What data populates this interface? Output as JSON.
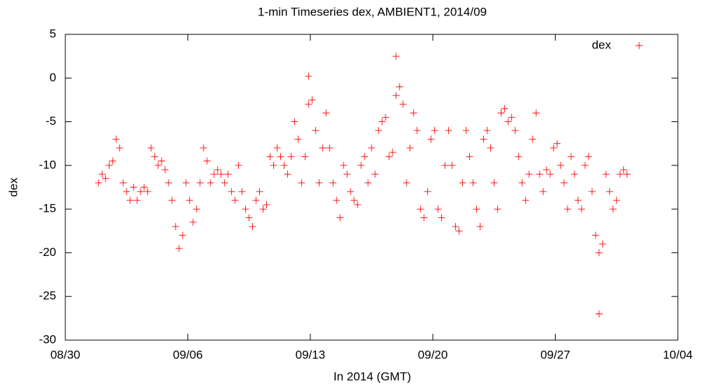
{
  "chart_data": {
    "type": "scatter",
    "title": "1-min Timeseries dex, AMBIENT1, 2014/09",
    "x_label": "In 2014 (GMT)",
    "y_label": "dex",
    "xlim": [
      -1,
      34
    ],
    "xticks": [
      {
        "value": -1,
        "label": "08/30"
      },
      {
        "value": 6,
        "label": "09/06"
      },
      {
        "value": 13,
        "label": "09/13"
      },
      {
        "value": 20,
        "label": "09/20"
      },
      {
        "value": 27,
        "label": "09/27"
      },
      {
        "value": 34,
        "label": "10/04"
      }
    ],
    "ylim": [
      -30,
      5
    ],
    "yticks": [
      -30,
      -25,
      -20,
      -15,
      -10,
      -5,
      0,
      5
    ],
    "grid": false,
    "legend": "top-right",
    "series": [
      {
        "name": "dex",
        "color": "#ff0000",
        "x": [
          0.9,
          1.1,
          1.3,
          1.5,
          1.7,
          1.9,
          2.1,
          2.3,
          2.5,
          2.7,
          2.9,
          3.1,
          3.3,
          3.5,
          3.7,
          3.9,
          4.1,
          4.3,
          4.5,
          4.7,
          4.9,
          5.1,
          5.3,
          5.5,
          5.7,
          5.9,
          6.1,
          6.3,
          6.5,
          6.7,
          6.9,
          7.1,
          7.3,
          7.5,
          7.7,
          7.9,
          8.1,
          8.3,
          8.5,
          8.7,
          8.9,
          9.1,
          9.3,
          9.5,
          9.7,
          9.9,
          10.1,
          10.3,
          10.5,
          10.7,
          10.9,
          11.1,
          11.3,
          11.5,
          11.7,
          11.9,
          12.1,
          12.3,
          12.5,
          12.7,
          12.9,
          13.1,
          13.3,
          13.5,
          13.7,
          13.9,
          14.1,
          14.3,
          14.5,
          14.7,
          14.9,
          15.1,
          15.3,
          15.5,
          15.7,
          15.9,
          16.1,
          16.3,
          16.5,
          16.7,
          16.9,
          17.1,
          17.3,
          17.5,
          17.7,
          17.9,
          18.1,
          18.3,
          18.5,
          18.7,
          18.9,
          19.1,
          19.3,
          19.5,
          19.7,
          19.9,
          20.1,
          20.3,
          20.5,
          20.7,
          20.9,
          21.1,
          21.3,
          21.5,
          21.7,
          21.9,
          22.1,
          22.3,
          22.5,
          22.7,
          22.9,
          23.1,
          23.3,
          23.5,
          23.7,
          23.9,
          24.1,
          24.3,
          24.5,
          24.7,
          24.9,
          25.1,
          25.3,
          25.5,
          25.7,
          25.9,
          26.1,
          26.3,
          26.5,
          26.7,
          26.9,
          27.1,
          27.3,
          27.5,
          27.7,
          27.9,
          28.1,
          28.3,
          28.5,
          28.7,
          28.9,
          29.1,
          29.3,
          29.5,
          29.7,
          29.9,
          30.1,
          30.3,
          30.5,
          30.7,
          30.9,
          31.1,
          29.5,
          12.9,
          17.9
        ],
        "values": [
          -12,
          -11,
          -11.5,
          -10,
          -9.5,
          -7,
          -8,
          -12,
          -13,
          -14,
          -12.5,
          -14,
          -13,
          -12.5,
          -13,
          -8,
          -9,
          -10,
          -9.5,
          -10.5,
          -12,
          -14,
          -17,
          -19.5,
          -18,
          -12,
          -14,
          -16.5,
          -15,
          -12,
          -8,
          -9.5,
          -12,
          -11,
          -10.5,
          -11,
          -12,
          -11,
          -13,
          -14,
          -10,
          -13,
          -15,
          -16,
          -17,
          -14,
          -13,
          -15,
          -14.5,
          -9,
          -10,
          -8,
          -9,
          -10,
          -11,
          -9,
          -5,
          -7,
          -12,
          -9,
          -3,
          -2.5,
          -6,
          -12,
          -8,
          -4,
          -8,
          -12,
          -14,
          -16,
          -10,
          -11,
          -13,
          -14,
          -14.5,
          -10,
          -9,
          -12,
          -8,
          -11,
          -6,
          -5,
          -4.5,
          -9,
          -8.5,
          -2,
          -1,
          -3,
          -12,
          -8,
          -4,
          -6,
          -15,
          -16,
          -13,
          -7,
          -6,
          -15,
          -16,
          -10,
          -6,
          -10,
          -17,
          -17.5,
          -12,
          -6,
          -9,
          -12,
          -15,
          -17,
          -7,
          -6,
          -8,
          -12,
          -15,
          -4,
          -3.5,
          -5,
          -4.5,
          -6,
          -9,
          -12,
          -14,
          -11,
          -7,
          -4,
          -11,
          -13,
          -10.5,
          -11,
          -8,
          -7.5,
          -10,
          -12,
          -15,
          -9,
          -11,
          -14,
          -15,
          -10,
          -9,
          -13,
          -18,
          -20,
          -19,
          -11,
          -13,
          -15,
          -14,
          -11,
          -10.5,
          -11,
          -27,
          0.2,
          2.5
        ]
      }
    ]
  }
}
